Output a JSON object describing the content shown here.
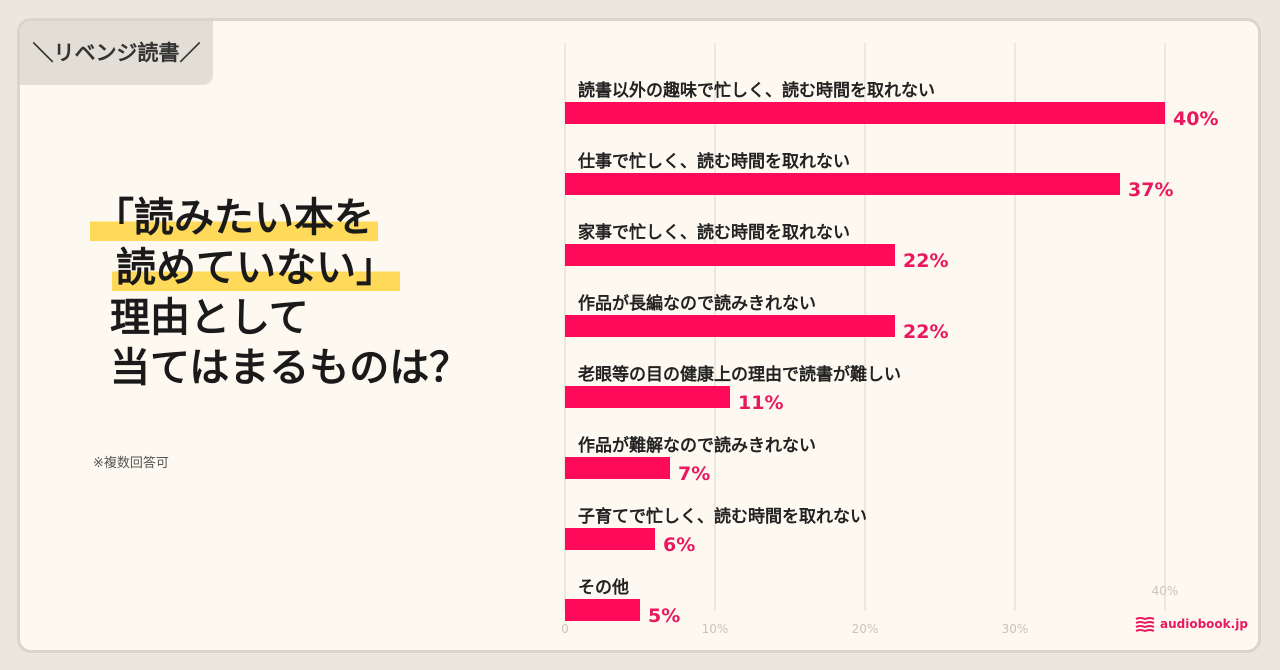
{
  "header": {
    "tag": "＼リベンジ読書／"
  },
  "question": {
    "line1": "「読みたい本を",
    "line2": "読めていない」",
    "line3": "理由として",
    "line4": "当てはまるものは？"
  },
  "note": "※複数回答可",
  "brand": {
    "name": "audiobook.jp",
    "color": "#e8195f"
  },
  "chart_data": {
    "type": "bar",
    "orientation": "horizontal",
    "categories": [
      "読書以外の趣味で忙しく、読む時間を取れない",
      "仕事で忙しく、読む時間を取れない",
      "家事で忙しく、読む時間を取れない",
      "作品が長編なので読みきれない",
      "老眼等の目の健康上の理由で読書が難しい",
      "作品が難解なので読みきれない",
      "子育てで忙しく、読む時間を取れない",
      "その他"
    ],
    "values": [
      40,
      37,
      22,
      22,
      11,
      7,
      6,
      5
    ],
    "value_labels": [
      "40%",
      "37%",
      "22%",
      "22%",
      "11%",
      "7%",
      "6%",
      "5%"
    ],
    "x_ticks": [
      "0",
      "10%",
      "20%",
      "30%",
      "40%"
    ],
    "xlim": [
      0,
      40
    ],
    "grid": true,
    "bar_color": "#ff0a5a",
    "label_color": "#e8195f"
  }
}
